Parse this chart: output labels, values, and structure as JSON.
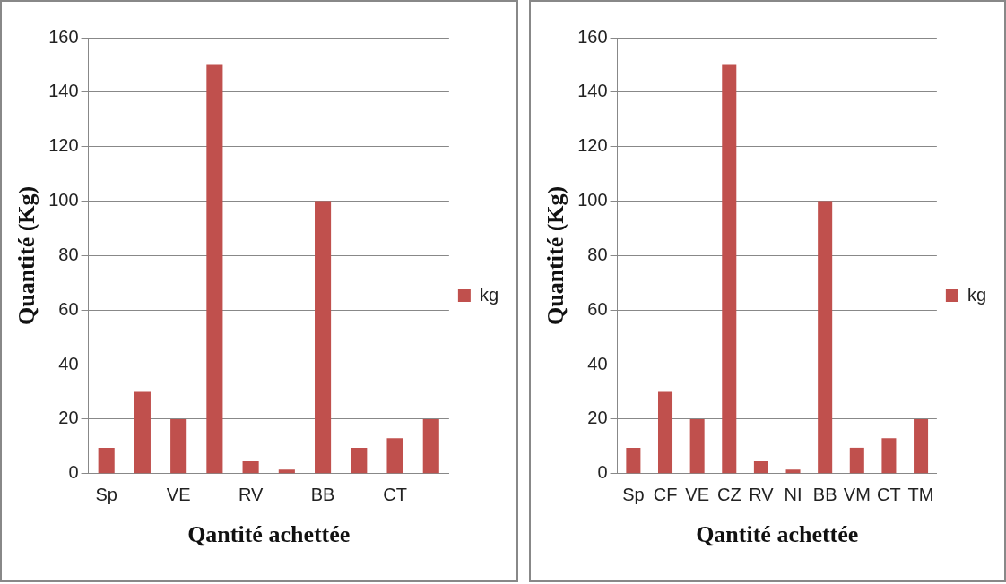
{
  "chart_data": [
    {
      "type": "bar",
      "xlabel": "Qantité achettée",
      "ylabel": "Quantité (Kg)",
      "categories": [
        "Sp",
        null,
        "VE",
        null,
        "RV",
        null,
        "BB",
        null,
        "CT",
        null
      ],
      "series": [
        {
          "name": "kg",
          "color": "#c0504d",
          "values": [
            9.5,
            30,
            20,
            150,
            4.5,
            1.5,
            100,
            9.5,
            13,
            20
          ]
        }
      ],
      "ylim": [
        0,
        160
      ],
      "yticks": [
        0,
        20,
        40,
        60,
        80,
        100,
        120,
        140,
        160
      ],
      "grid": "y",
      "legend": "right"
    },
    {
      "type": "bar",
      "xlabel": "Qantité achettée",
      "ylabel": "Quantité (Kg)",
      "categories": [
        "Sp",
        "CF",
        "VE",
        "CZ",
        "RV",
        "NI",
        "BB",
        "VM",
        "CT",
        "TM"
      ],
      "series": [
        {
          "name": "kg",
          "color": "#c0504d",
          "values": [
            9.5,
            30,
            20,
            150,
            4.5,
            1.5,
            100,
            9.5,
            13,
            20
          ]
        }
      ],
      "ylim": [
        0,
        160
      ],
      "yticks": [
        0,
        20,
        40,
        60,
        80,
        100,
        120,
        140,
        160
      ],
      "grid": "y",
      "legend": "right"
    }
  ]
}
